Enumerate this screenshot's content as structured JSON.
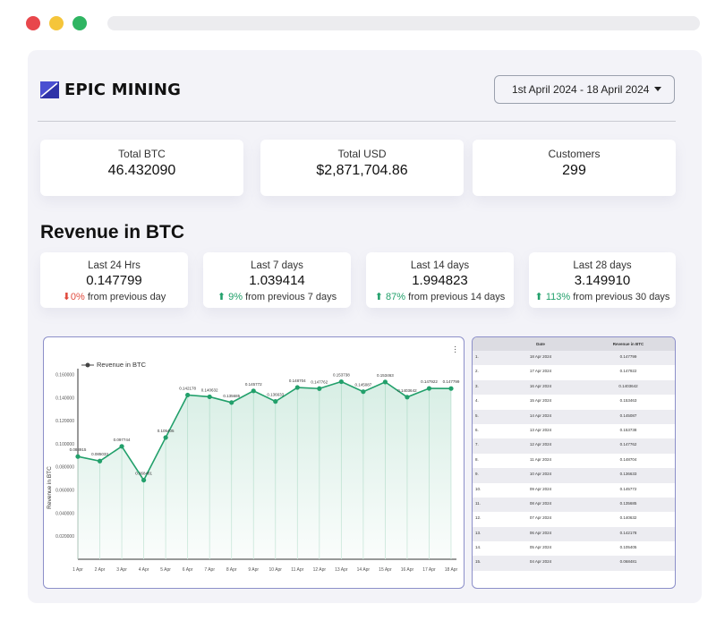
{
  "brand": {
    "name": "EPIC MINING",
    "logo_icon": "epic-mining-logo-icon"
  },
  "date_range": {
    "value": "1st April 2024 - 18 April 2024"
  },
  "stats": [
    {
      "label": "Total BTC",
      "value": "46.432090"
    },
    {
      "label": "Total USD",
      "value": "$2,871,704.86"
    },
    {
      "label": "Customers",
      "value": "299"
    }
  ],
  "revenue_section": {
    "title": "Revenue in BTC"
  },
  "revenue_cards": [
    {
      "label": "Last 24 Hrs",
      "value": "0.147799",
      "delta": "0%",
      "direction": "down",
      "suffix": "from previous day"
    },
    {
      "label": "Last 7 days",
      "value": "1.039414",
      "delta": "9%",
      "direction": "up",
      "suffix": "from previous 7 days"
    },
    {
      "label": "Last 14 days",
      "value": "1.994823",
      "delta": "87%",
      "direction": "up",
      "suffix": "from previous 14 days"
    },
    {
      "label": "Last 28 days",
      "value": "3.149910",
      "delta": "113%",
      "direction": "up",
      "suffix": "from previous 30 days"
    }
  ],
  "colors": {
    "line": "#22a06b",
    "up": "#22a06b",
    "down": "#e04a3d",
    "border": "#8c8fc9"
  },
  "chart_data": {
    "type": "line",
    "legend": "Revenue in BTC",
    "ylabel": "Revenue in BTC",
    "xlabel": "",
    "x": [
      "1 Apr",
      "2 Apr",
      "3 Apr",
      "4 Apr",
      "5 Apr",
      "6 Apr",
      "7 Apr",
      "8 Apr",
      "9 Apr",
      "10 Apr",
      "11 Apr",
      "12 Apr",
      "13 Apr",
      "14 Apr",
      "15 Apr",
      "16 Apr",
      "17 Apr",
      "18 Apr"
    ],
    "y": [
      0.088915,
      0.085033,
      0.097744,
      0.068481,
      0.105405,
      0.142178,
      0.140632,
      0.135685,
      0.145772,
      0.136633,
      0.148704,
      0.147762,
      0.153738,
      0.145087,
      0.153463,
      0.1403642,
      0.147922,
      0.147799
    ],
    "point_labels": [
      "0.088915",
      "0.085033",
      "0.097744",
      "0.068481",
      "0.105405",
      "0.142178",
      "0.140632",
      "0.135685",
      "0.145772",
      "0.136633",
      "0.148704",
      "0.147762",
      "0.153738",
      "0.145087",
      "0.153463",
      "0.1403642",
      "0.147922",
      "0.147799"
    ],
    "yticks": [
      "0.160000",
      "0.140000",
      "0.120000",
      "0.100000",
      "0.080000",
      "0.060000",
      "0.040000",
      "0.020000"
    ],
    "ytick_values": [
      0.16,
      0.14,
      0.12,
      0.1,
      0.08,
      0.06,
      0.04,
      0.02
    ],
    "ylim": [
      0,
      0.165
    ],
    "grid": false,
    "legend_position": "top-left"
  },
  "table": {
    "headers": [
      "",
      "Date",
      "Revenue in BTC"
    ],
    "rows": [
      [
        "1.",
        "18 Apr 2024",
        "0.147799"
      ],
      [
        "2.",
        "17 Apr 2024",
        "0.147922"
      ],
      [
        "3.",
        "16 Apr 2024",
        "0.1403642"
      ],
      [
        "4.",
        "15 Apr 2024",
        "0.153463"
      ],
      [
        "5.",
        "14 Apr 2024",
        "0.145087"
      ],
      [
        "6.",
        "13 Apr 2024",
        "0.153738"
      ],
      [
        "7.",
        "12 Apr 2024",
        "0.147762"
      ],
      [
        "8.",
        "11 Apr 2024",
        "0.148704"
      ],
      [
        "9.",
        "10 Apr 2024",
        "0.136633"
      ],
      [
        "10.",
        "09 Apr 2024",
        "0.145772"
      ],
      [
        "11.",
        "08 Apr 2024",
        "0.135685"
      ],
      [
        "12.",
        "07 Apr 2024",
        "0.140632"
      ],
      [
        "13.",
        "06 Apr 2024",
        "0.142178"
      ],
      [
        "14.",
        "05 Apr 2024",
        "0.105405"
      ],
      [
        "15.",
        "04 Apr 2024",
        "0.068481"
      ]
    ]
  }
}
